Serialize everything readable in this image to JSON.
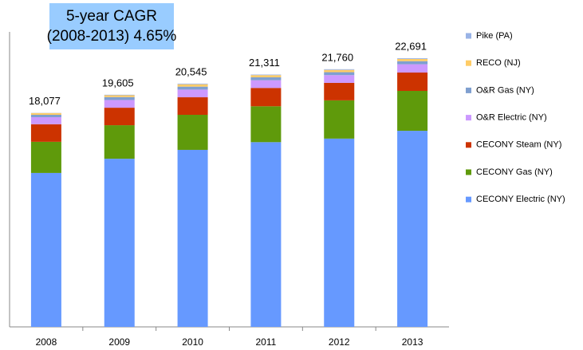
{
  "chart_data": {
    "type": "stacked_bar",
    "annotation": [
      "5-year CAGR",
      "(2008-2013)  4.65%"
    ],
    "categories": [
      "2008",
      "2009",
      "2010",
      "2011",
      "2012",
      "2013"
    ],
    "totals": [
      18077,
      19605,
      20545,
      21311,
      21760,
      22691
    ],
    "total_labels": [
      "18,077",
      "19,605",
      "20,545",
      "21,311",
      "21,760",
      "22,691"
    ],
    "series": [
      {
        "name": "CECONY Electric (NY)",
        "color": "#6699ff",
        "values": [
          13000,
          14200,
          14950,
          15600,
          15900,
          16560
        ]
      },
      {
        "name": "CECONY Gas (NY)",
        "color": "#5f9a0b",
        "values": [
          2630,
          2830,
          2960,
          3030,
          3230,
          3370
        ]
      },
      {
        "name": "CECONY Steam (NY)",
        "color": "#cc3300",
        "values": [
          1480,
          1480,
          1480,
          1550,
          1480,
          1550
        ]
      },
      {
        "name": "O&R Electric (NY)",
        "color": "#cc99ff",
        "values": [
          600,
          650,
          650,
          650,
          650,
          700
        ]
      },
      {
        "name": "O&R Gas (NY)",
        "color": "#7f9fcf",
        "values": [
          200,
          250,
          250,
          250,
          250,
          260
        ]
      },
      {
        "name": "RECO (NJ)",
        "color": "#ffcc66",
        "values": [
          150,
          150,
          200,
          180,
          190,
          190
        ]
      },
      {
        "name": "Pike (PA)",
        "color": "#99b3e6",
        "values": [
          17,
          45,
          55,
          51,
          60,
          61
        ]
      }
    ]
  }
}
